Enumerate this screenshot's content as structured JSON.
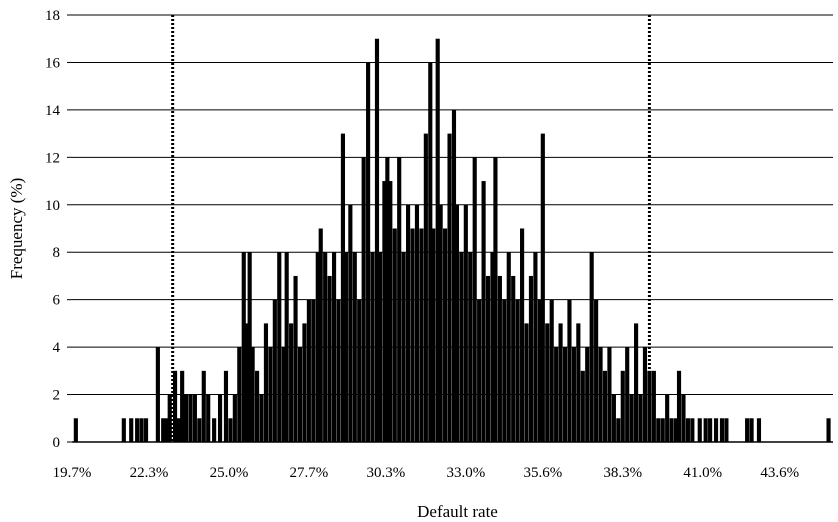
{
  "chart_data": {
    "type": "bar",
    "title": "",
    "xlabel": "Default rate",
    "ylabel": "Frequency (%)",
    "ylim": [
      0,
      18
    ],
    "y_ticks": [
      "0",
      "2",
      "4",
      "6",
      "8",
      "10",
      "12",
      "14",
      "16",
      "18"
    ],
    "x_range_percent": [
      19.7,
      45.4
    ],
    "x_tick_labels": [
      "19.7%",
      "22.3%",
      "25.0%",
      "27.7%",
      "30.3%",
      "33.0%",
      "35.6%",
      "38.3%",
      "41.0%",
      "43.6%"
    ],
    "x_tick_values": [
      19.7,
      22.3,
      25.0,
      27.7,
      30.3,
      33.0,
      35.6,
      38.3,
      41.0,
      43.6
    ],
    "grid": "horizontal",
    "bar_color": "#000000",
    "threshold_lines": [
      {
        "x": 23.1,
        "style": "dotted"
      },
      {
        "x": 39.2,
        "style": "dotted"
      }
    ],
    "series": [
      {
        "values": [
          {
            "x": 19.83,
            "y": 1
          },
          {
            "x": 21.45,
            "y": 1
          },
          {
            "x": 21.7,
            "y": 1
          },
          {
            "x": 21.9,
            "y": 1
          },
          {
            "x": 22.05,
            "y": 1
          },
          {
            "x": 22.2,
            "y": 1
          },
          {
            "x": 22.6,
            "y": 4
          },
          {
            "x": 22.78,
            "y": 1
          },
          {
            "x": 22.9,
            "y": 1
          },
          {
            "x": 23.0,
            "y": 2
          },
          {
            "x": 23.18,
            "y": 3
          },
          {
            "x": 23.3,
            "y": 1
          },
          {
            "x": 23.42,
            "y": 3
          },
          {
            "x": 23.55,
            "y": 2
          },
          {
            "x": 23.7,
            "y": 2
          },
          {
            "x": 23.85,
            "y": 2
          },
          {
            "x": 24.0,
            "y": 1
          },
          {
            "x": 24.15,
            "y": 3
          },
          {
            "x": 24.3,
            "y": 2
          },
          {
            "x": 24.5,
            "y": 1
          },
          {
            "x": 24.7,
            "y": 2
          },
          {
            "x": 24.9,
            "y": 3
          },
          {
            "x": 25.05,
            "y": 1
          },
          {
            "x": 25.2,
            "y": 2
          },
          {
            "x": 25.35,
            "y": 4
          },
          {
            "x": 25.5,
            "y": 8
          },
          {
            "x": 25.6,
            "y": 5
          },
          {
            "x": 25.7,
            "y": 8
          },
          {
            "x": 25.8,
            "y": 4
          },
          {
            "x": 25.95,
            "y": 3
          },
          {
            "x": 26.1,
            "y": 2
          },
          {
            "x": 26.25,
            "y": 5
          },
          {
            "x": 26.4,
            "y": 4
          },
          {
            "x": 26.55,
            "y": 6
          },
          {
            "x": 26.7,
            "y": 8
          },
          {
            "x": 26.85,
            "y": 4
          },
          {
            "x": 26.95,
            "y": 8
          },
          {
            "x": 27.1,
            "y": 5
          },
          {
            "x": 27.25,
            "y": 7
          },
          {
            "x": 27.4,
            "y": 4
          },
          {
            "x": 27.55,
            "y": 5
          },
          {
            "x": 27.7,
            "y": 6
          },
          {
            "x": 27.85,
            "y": 6
          },
          {
            "x": 28.0,
            "y": 8
          },
          {
            "x": 28.1,
            "y": 9
          },
          {
            "x": 28.25,
            "y": 8
          },
          {
            "x": 28.4,
            "y": 7
          },
          {
            "x": 28.55,
            "y": 8
          },
          {
            "x": 28.7,
            "y": 6
          },
          {
            "x": 28.85,
            "y": 13
          },
          {
            "x": 28.95,
            "y": 8
          },
          {
            "x": 29.1,
            "y": 10
          },
          {
            "x": 29.25,
            "y": 8
          },
          {
            "x": 29.4,
            "y": 6
          },
          {
            "x": 29.55,
            "y": 12
          },
          {
            "x": 29.7,
            "y": 16
          },
          {
            "x": 29.85,
            "y": 8
          },
          {
            "x": 30.0,
            "y": 17
          },
          {
            "x": 30.1,
            "y": 8
          },
          {
            "x": 30.25,
            "y": 11
          },
          {
            "x": 30.35,
            "y": 12
          },
          {
            "x": 30.45,
            "y": 11
          },
          {
            "x": 30.6,
            "y": 9
          },
          {
            "x": 30.75,
            "y": 12
          },
          {
            "x": 30.9,
            "y": 8
          },
          {
            "x": 31.05,
            "y": 10
          },
          {
            "x": 31.2,
            "y": 9
          },
          {
            "x": 31.35,
            "y": 10
          },
          {
            "x": 31.5,
            "y": 9
          },
          {
            "x": 31.65,
            "y": 13
          },
          {
            "x": 31.8,
            "y": 16
          },
          {
            "x": 31.9,
            "y": 9
          },
          {
            "x": 32.05,
            "y": 17
          },
          {
            "x": 32.15,
            "y": 10
          },
          {
            "x": 32.3,
            "y": 9
          },
          {
            "x": 32.45,
            "y": 13
          },
          {
            "x": 32.6,
            "y": 14
          },
          {
            "x": 32.7,
            "y": 10
          },
          {
            "x": 32.85,
            "y": 8
          },
          {
            "x": 33.0,
            "y": 10
          },
          {
            "x": 33.15,
            "y": 8
          },
          {
            "x": 33.3,
            "y": 12
          },
          {
            "x": 33.45,
            "y": 6
          },
          {
            "x": 33.6,
            "y": 11
          },
          {
            "x": 33.75,
            "y": 7
          },
          {
            "x": 33.9,
            "y": 8
          },
          {
            "x": 34.0,
            "y": 12
          },
          {
            "x": 34.15,
            "y": 7
          },
          {
            "x": 34.3,
            "y": 6
          },
          {
            "x": 34.45,
            "y": 8
          },
          {
            "x": 34.6,
            "y": 7
          },
          {
            "x": 34.75,
            "y": 6
          },
          {
            "x": 34.9,
            "y": 9
          },
          {
            "x": 35.05,
            "y": 5
          },
          {
            "x": 35.2,
            "y": 7
          },
          {
            "x": 35.35,
            "y": 8
          },
          {
            "x": 35.5,
            "y": 6
          },
          {
            "x": 35.6,
            "y": 13
          },
          {
            "x": 35.75,
            "y": 5
          },
          {
            "x": 35.9,
            "y": 6
          },
          {
            "x": 36.05,
            "y": 4
          },
          {
            "x": 36.2,
            "y": 5
          },
          {
            "x": 36.35,
            "y": 4
          },
          {
            "x": 36.5,
            "y": 6
          },
          {
            "x": 36.65,
            "y": 4
          },
          {
            "x": 36.8,
            "y": 5
          },
          {
            "x": 36.95,
            "y": 3
          },
          {
            "x": 37.1,
            "y": 4
          },
          {
            "x": 37.25,
            "y": 8
          },
          {
            "x": 37.4,
            "y": 6
          },
          {
            "x": 37.55,
            "y": 4
          },
          {
            "x": 37.7,
            "y": 3
          },
          {
            "x": 37.85,
            "y": 4
          },
          {
            "x": 38.0,
            "y": 2
          },
          {
            "x": 38.15,
            "y": 1
          },
          {
            "x": 38.3,
            "y": 3
          },
          {
            "x": 38.45,
            "y": 4
          },
          {
            "x": 38.6,
            "y": 2
          },
          {
            "x": 38.75,
            "y": 5
          },
          {
            "x": 38.9,
            "y": 2
          },
          {
            "x": 39.05,
            "y": 4
          },
          {
            "x": 39.2,
            "y": 3
          },
          {
            "x": 39.35,
            "y": 3
          },
          {
            "x": 39.5,
            "y": 1
          },
          {
            "x": 39.65,
            "y": 1
          },
          {
            "x": 39.8,
            "y": 2
          },
          {
            "x": 39.95,
            "y": 1
          },
          {
            "x": 40.1,
            "y": 1
          },
          {
            "x": 40.2,
            "y": 3
          },
          {
            "x": 40.35,
            "y": 2
          },
          {
            "x": 40.5,
            "y": 1
          },
          {
            "x": 40.65,
            "y": 1
          },
          {
            "x": 40.9,
            "y": 1
          },
          {
            "x": 41.1,
            "y": 1
          },
          {
            "x": 41.25,
            "y": 1
          },
          {
            "x": 41.45,
            "y": 1
          },
          {
            "x": 41.65,
            "y": 1
          },
          {
            "x": 41.8,
            "y": 1
          },
          {
            "x": 42.5,
            "y": 1
          },
          {
            "x": 42.65,
            "y": 1
          },
          {
            "x": 42.9,
            "y": 1
          },
          {
            "x": 45.25,
            "y": 1
          }
        ]
      }
    ]
  }
}
